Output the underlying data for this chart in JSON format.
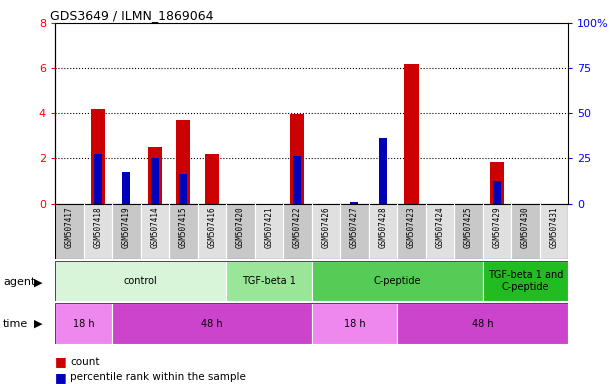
{
  "title": "GDS3649 / ILMN_1869064",
  "samples": [
    "GSM507417",
    "GSM507418",
    "GSM507419",
    "GSM507414",
    "GSM507415",
    "GSM507416",
    "GSM507420",
    "GSM507421",
    "GSM507422",
    "GSM507426",
    "GSM507427",
    "GSM507428",
    "GSM507423",
    "GSM507424",
    "GSM507425",
    "GSM507429",
    "GSM507430",
    "GSM507431"
  ],
  "count_values": [
    0.0,
    4.2,
    0.0,
    2.5,
    3.7,
    2.2,
    0.0,
    0.0,
    3.95,
    0.0,
    0.0,
    0.0,
    6.2,
    0.0,
    0.0,
    1.85,
    0.0,
    0.0
  ],
  "percentile_values": [
    0.0,
    27.5,
    17.5,
    25.0,
    16.25,
    0.0,
    0.0,
    0.0,
    26.25,
    0.0,
    0.625,
    36.25,
    0.0,
    0.0,
    0.0,
    12.5,
    0.0,
    0.0
  ],
  "ylim_left": [
    0,
    8
  ],
  "ylim_right": [
    0,
    100
  ],
  "yticks_left": [
    0,
    2,
    4,
    6,
    8
  ],
  "yticks_right": [
    0,
    25,
    50,
    75,
    100
  ],
  "ytick_labels_right": [
    "0",
    "25",
    "50",
    "75",
    "100%"
  ],
  "count_color": "#cc0000",
  "percentile_color": "#0000bb",
  "bar_width": 0.5,
  "agent_groups": [
    {
      "label": "control",
      "start": 0,
      "end": 5,
      "color": "#d9f5d9"
    },
    {
      "label": "TGF-beta 1",
      "start": 6,
      "end": 8,
      "color": "#99e699"
    },
    {
      "label": "C-peptide",
      "start": 9,
      "end": 14,
      "color": "#55cc55"
    },
    {
      "label": "TGF-beta 1 and\nC-peptide",
      "start": 15,
      "end": 17,
      "color": "#22bb22"
    }
  ],
  "time_groups": [
    {
      "label": "18 h",
      "start": 0,
      "end": 1,
      "color": "#ee88ee"
    },
    {
      "label": "48 h",
      "start": 2,
      "end": 8,
      "color": "#cc44cc"
    },
    {
      "label": "18 h",
      "start": 9,
      "end": 11,
      "color": "#ee88ee"
    },
    {
      "label": "48 h",
      "start": 12,
      "end": 17,
      "color": "#cc44cc"
    }
  ],
  "sample_bg_odd": "#c8c8c8",
  "sample_bg_even": "#e0e0e0"
}
